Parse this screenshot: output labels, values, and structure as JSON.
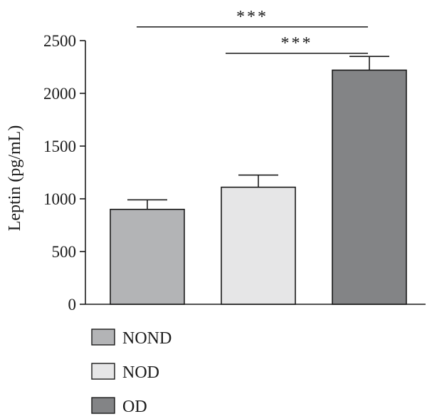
{
  "chart_data": {
    "type": "bar",
    "categories": [
      "NOND",
      "NOD",
      "OD"
    ],
    "values": [
      900,
      1110,
      2220
    ],
    "errors": [
      90,
      115,
      130
    ],
    "colors": [
      "#b3b4b6",
      "#e6e6e7",
      "#838486"
    ],
    "ylabel": "Leptin (pg/mL)",
    "ylim": [
      0,
      2500
    ],
    "yticks": [
      0,
      500,
      1000,
      1500,
      2000,
      2500
    ],
    "grid": false,
    "legend": {
      "placement": "bottom-left",
      "entries": [
        "NOND",
        "NOD",
        "OD"
      ]
    },
    "annotations": [
      {
        "from": 0,
        "to": 2,
        "y": 2630,
        "text": "***"
      },
      {
        "from": 1,
        "to": 2,
        "y": 2380,
        "text": "***"
      }
    ]
  }
}
